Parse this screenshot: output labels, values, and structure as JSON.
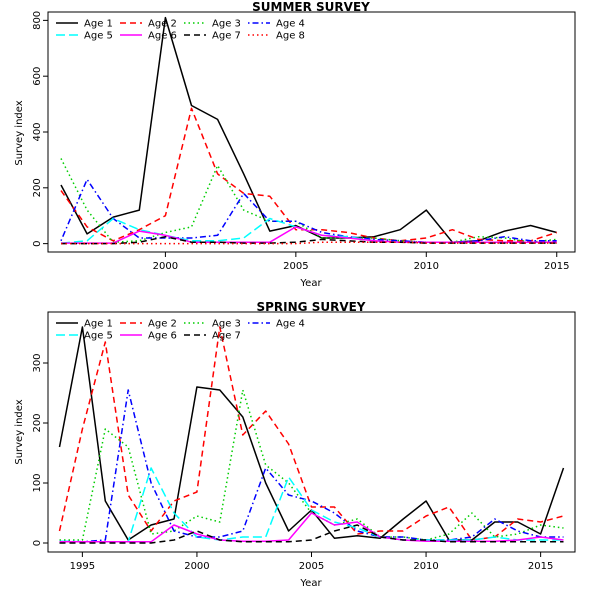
{
  "chart_data": [
    {
      "type": "line",
      "title": "SUMMER SURVEY",
      "xlabel": "Year",
      "ylabel": "Survey index",
      "xlim": [
        1995.5,
        2015.7
      ],
      "ylim": [
        -30,
        830
      ],
      "xticks": [
        2000,
        2005,
        2010,
        2015
      ],
      "yticks": [
        0,
        200,
        400,
        600,
        800
      ],
      "legend_position": "top-left",
      "x": [
        1996,
        1997,
        1998,
        1999,
        2000,
        2001,
        2002,
        2003,
        2004,
        2005,
        2006,
        2007,
        2008,
        2009,
        2010,
        2011,
        2012,
        2013,
        2014,
        2015
      ],
      "series": [
        {
          "name": "Age 1",
          "color": "#000000",
          "dash": "solid",
          "values": [
            210,
            35,
            95,
            120,
            810,
            495,
            445,
            250,
            45,
            65,
            20,
            20,
            25,
            50,
            120,
            5,
            10,
            45,
            65,
            40
          ]
        },
        {
          "name": "Age 2",
          "color": "#ff0000",
          "dash": "dashed",
          "values": [
            190,
            60,
            10,
            50,
            100,
            485,
            250,
            180,
            170,
            50,
            50,
            40,
            20,
            10,
            20,
            50,
            15,
            10,
            10,
            40
          ]
        },
        {
          "name": "Age 3",
          "color": "#00cd00",
          "dash": "dotted",
          "values": [
            305,
            120,
            5,
            10,
            40,
            60,
            280,
            120,
            80,
            80,
            20,
            20,
            20,
            10,
            5,
            5,
            25,
            20,
            5,
            15
          ]
        },
        {
          "name": "Age 4",
          "color": "#0000ff",
          "dash": "dotdash",
          "values": [
            10,
            230,
            90,
            20,
            20,
            20,
            30,
            180,
            80,
            80,
            40,
            25,
            15,
            10,
            5,
            5,
            10,
            25,
            10,
            10
          ]
        },
        {
          "name": "Age 5",
          "color": "#00ffff",
          "dash": "longdash",
          "values": [
            2,
            10,
            90,
            50,
            30,
            10,
            10,
            20,
            90,
            60,
            30,
            25,
            10,
            5,
            5,
            5,
            5,
            5,
            5,
            5
          ]
        },
        {
          "name": "Age 6",
          "color": "#ff00ff",
          "dash": "solid",
          "values": [
            2,
            2,
            2,
            45,
            30,
            5,
            5,
            5,
            5,
            60,
            30,
            20,
            10,
            5,
            5,
            5,
            5,
            5,
            5,
            5
          ]
        },
        {
          "name": "Age 7",
          "color": "#000000",
          "dash": "dashed",
          "values": [
            0,
            0,
            0,
            5,
            25,
            5,
            5,
            2,
            2,
            5,
            15,
            10,
            5,
            5,
            2,
            2,
            2,
            2,
            2,
            2
          ]
        },
        {
          "name": "Age 8",
          "color": "#ff0000",
          "dash": "dotted",
          "values": [
            0,
            0,
            0,
            0,
            0,
            0,
            0,
            0,
            0,
            0,
            5,
            5,
            5,
            5,
            2,
            2,
            2,
            2,
            2,
            2
          ]
        }
      ]
    },
    {
      "type": "line",
      "title": "SPRING SURVEY",
      "xlabel": "Year",
      "ylabel": "Survey index",
      "xlim": [
        1993.5,
        2016.5
      ],
      "ylim": [
        -15,
        385
      ],
      "xticks": [
        1995,
        2000,
        2005,
        2010,
        2015
      ],
      "yticks": [
        0,
        100,
        200,
        300
      ],
      "legend_position": "top-left",
      "x": [
        1994,
        1995,
        1996,
        1997,
        1998,
        1999,
        2000,
        2001,
        2002,
        2003,
        2004,
        2005,
        2006,
        2007,
        2008,
        2009,
        2010,
        2011,
        2012,
        2013,
        2014,
        2015,
        2016
      ],
      "series": [
        {
          "name": "Age 1",
          "color": "#000000",
          "dash": "solid",
          "values": [
            160,
            360,
            70,
            5,
            30,
            40,
            260,
            255,
            210,
            100,
            20,
            55,
            8,
            12,
            8,
            40,
            70,
            5,
            5,
            35,
            35,
            15,
            125
          ]
        },
        {
          "name": "Age 2",
          "color": "#ff0000",
          "dash": "dashed",
          "values": [
            20,
            190,
            335,
            80,
            20,
            70,
            85,
            360,
            180,
            220,
            165,
            60,
            60,
            15,
            20,
            20,
            45,
            60,
            5,
            10,
            40,
            35,
            45
          ]
        },
        {
          "name": "Age 3",
          "color": "#00cd00",
          "dash": "dotted",
          "values": [
            5,
            5,
            190,
            160,
            15,
            20,
            45,
            35,
            255,
            130,
            100,
            50,
            30,
            40,
            10,
            10,
            5,
            15,
            50,
            10,
            15,
            30,
            25
          ]
        },
        {
          "name": "Age 4",
          "color": "#0000ff",
          "dash": "dotdash",
          "values": [
            3,
            2,
            5,
            255,
            100,
            20,
            10,
            10,
            20,
            125,
            80,
            70,
            50,
            20,
            10,
            10,
            5,
            5,
            10,
            40,
            20,
            10,
            10
          ]
        },
        {
          "name": "Age 5",
          "color": "#00ffff",
          "dash": "longdash",
          "values": [
            3,
            2,
            2,
            2,
            125,
            50,
            10,
            5,
            10,
            10,
            110,
            55,
            35,
            25,
            10,
            5,
            5,
            5,
            5,
            10,
            5,
            5,
            5
          ]
        },
        {
          "name": "Age 6",
          "color": "#ff00ff",
          "dash": "solid",
          "values": [
            2,
            2,
            2,
            2,
            2,
            30,
            15,
            5,
            3,
            3,
            5,
            50,
            30,
            35,
            10,
            5,
            3,
            3,
            3,
            3,
            5,
            10,
            5
          ]
        },
        {
          "name": "Age 7",
          "color": "#000000",
          "dash": "dashed",
          "values": [
            0,
            0,
            0,
            0,
            0,
            5,
            20,
            5,
            2,
            2,
            2,
            5,
            20,
            30,
            10,
            5,
            5,
            2,
            2,
            2,
            2,
            2,
            2
          ]
        }
      ]
    }
  ]
}
